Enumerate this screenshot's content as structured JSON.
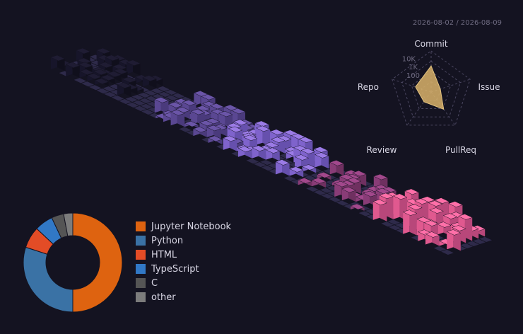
{
  "date_range": "2026-08-02 / 2026-08-09",
  "radar": {
    "axes": [
      "Commit",
      "Issue",
      "PullReq",
      "Review",
      "Repo"
    ],
    "scale_labels": [
      "10K",
      "1K",
      "100"
    ],
    "values": [
      1500,
      15,
      400,
      30,
      100
    ],
    "fill": "#d9b36a",
    "stroke": "#e2c27f"
  },
  "calendar": {
    "weeks": 53,
    "days": 7,
    "clusters": [
      {
        "week": 3,
        "colors": [
          "#1f1c33",
          "#17152a",
          "#100f1c"
        ]
      },
      {
        "week": 18,
        "colors": [
          "#6b55a8",
          "#5a4792",
          "#4a3a7c"
        ]
      },
      {
        "week": 26,
        "colors": [
          "#9b7be6",
          "#7f63cc",
          "#6650ad"
        ]
      },
      {
        "week": 38,
        "colors": [
          "#a2488c",
          "#893c77",
          "#6f3060"
        ]
      },
      {
        "week": 48,
        "colors": [
          "#ff6fa8",
          "#e0598f",
          "#b8477a"
        ]
      }
    ]
  },
  "languages": [
    {
      "name": "Jupyter Notebook",
      "value": 50,
      "color": "#de6310"
    },
    {
      "name": "Python",
      "value": 30,
      "color": "#3a72a5"
    },
    {
      "name": "HTML",
      "value": 7,
      "color": "#e34c26"
    },
    {
      "name": "TypeScript",
      "value": 6,
      "color": "#3178c6"
    },
    {
      "name": "C",
      "value": 4,
      "color": "#555555"
    },
    {
      "name": "other",
      "value": 3,
      "color": "#7c7c7c"
    }
  ]
}
